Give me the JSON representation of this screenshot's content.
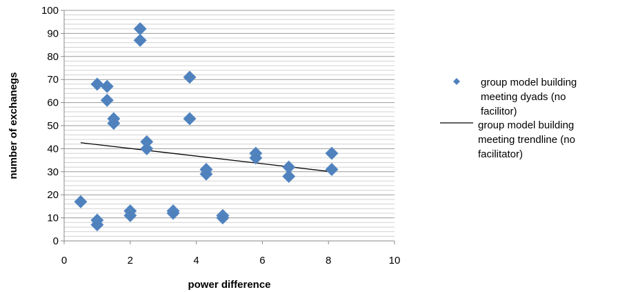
{
  "chart_data": {
    "type": "scatter",
    "xlabel": "power difference",
    "ylabel": "number of exchanegs",
    "xlim": [
      0,
      10
    ],
    "ylim": [
      0,
      100
    ],
    "x_ticks": [
      "0",
      "2",
      "4",
      "6",
      "8",
      "10"
    ],
    "y_ticks": [
      "0",
      "10",
      "20",
      "30",
      "40",
      "50",
      "60",
      "70",
      "80",
      "90",
      "100"
    ],
    "grid": "horizontal minor lines every 2, major lines every 10",
    "legend_position": "right",
    "series": [
      {
        "name": "group model building meeting dyads (no facilitor)",
        "legend_lines": [
          "group model building",
          "meeting dyads (no",
          "facilitor)"
        ],
        "marker": "diamond",
        "color": "#4F81BD",
        "points": [
          [
            0.5,
            17
          ],
          [
            1.0,
            68
          ],
          [
            1.0,
            9
          ],
          [
            1.0,
            7
          ],
          [
            1.3,
            67
          ],
          [
            1.3,
            61
          ],
          [
            1.5,
            53
          ],
          [
            1.5,
            51
          ],
          [
            2.0,
            13
          ],
          [
            2.0,
            11
          ],
          [
            2.3,
            92
          ],
          [
            2.3,
            87
          ],
          [
            2.5,
            43
          ],
          [
            2.5,
            40
          ],
          [
            3.3,
            13
          ],
          [
            3.3,
            12
          ],
          [
            3.8,
            71
          ],
          [
            3.8,
            53
          ],
          [
            4.3,
            31
          ],
          [
            4.3,
            29
          ],
          [
            4.8,
            11
          ],
          [
            4.8,
            10
          ],
          [
            5.8,
            38
          ],
          [
            5.8,
            36
          ],
          [
            6.8,
            32
          ],
          [
            6.8,
            28
          ],
          [
            8.1,
            38
          ],
          [
            8.1,
            31
          ]
        ]
      },
      {
        "name": "group model building meeting trendline (no facilitator)",
        "legend_lines": [
          "group model building",
          "meeting trendline (no",
          "facilitator)"
        ],
        "type": "line",
        "color": "#000000",
        "points": [
          [
            0.5,
            42.6
          ],
          [
            8.1,
            30
          ]
        ]
      }
    ]
  }
}
